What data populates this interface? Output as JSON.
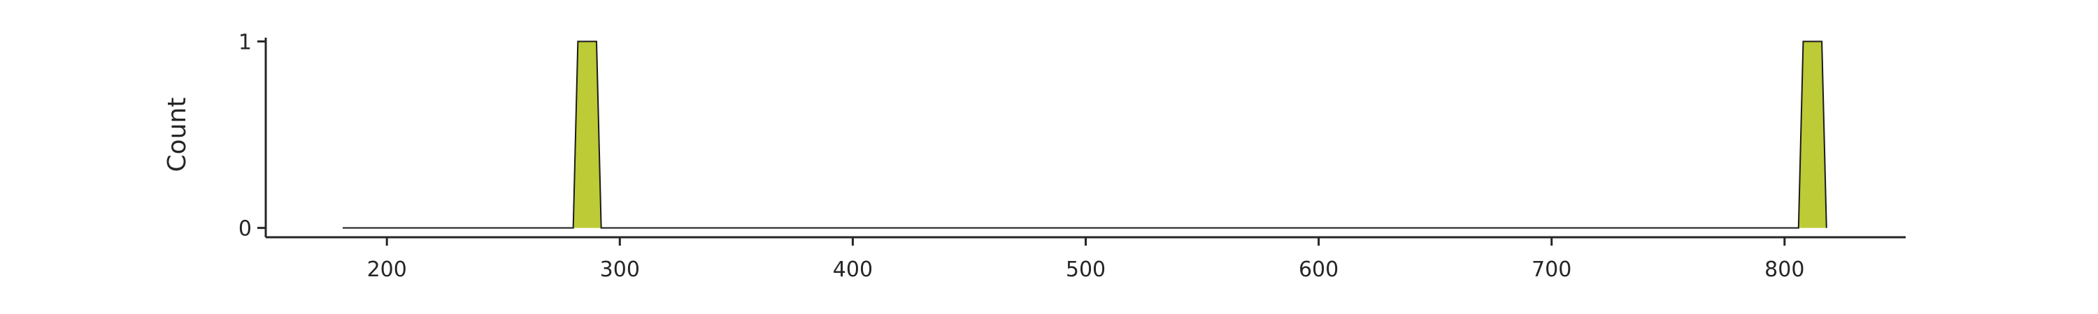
{
  "chart_data": {
    "type": "area",
    "title": "",
    "xlabel": "",
    "ylabel": "Count",
    "xlim": [
      148,
      852
    ],
    "ylim": [
      -0.05,
      1.05
    ],
    "x_ticks": [
      200,
      300,
      400,
      500,
      600,
      700,
      800
    ],
    "y_ticks": [
      0,
      1
    ],
    "grid": false,
    "legend": "none",
    "series": [
      {
        "x": [
          181,
          280,
          282,
          290,
          292,
          806,
          808,
          816,
          818
        ],
        "y": [
          0,
          0,
          1,
          1,
          0,
          0,
          1,
          1,
          0
        ]
      }
    ],
    "colors": {
      "fill": "#bccb36",
      "line": "#1a1a1a",
      "axis": "#262626"
    }
  }
}
